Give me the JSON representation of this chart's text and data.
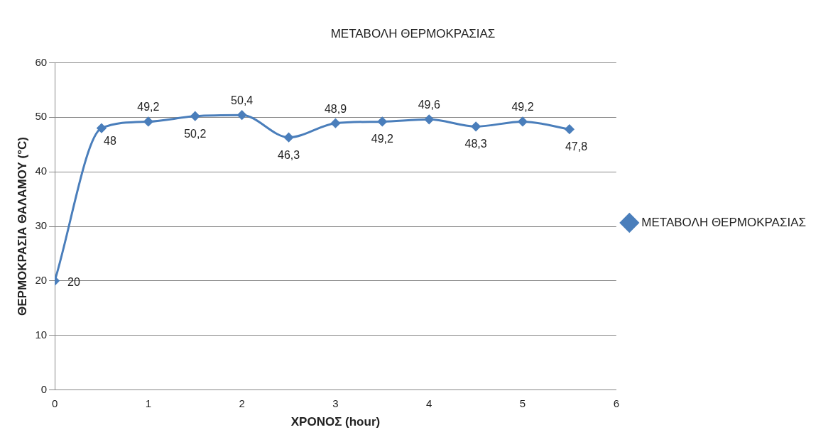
{
  "chart_data": {
    "type": "line",
    "title": "ΜΕΤΑΒΟΛΗ ΘΕΡΜΟΚΡΑΣΙΑΣ",
    "xlabel": "ΧΡΟΝΟΣ (hour)",
    "ylabel": "ΘΕΡΜΟΚΡΑΣΙΑ ΘΑΛΑΜΟΥ (°C)",
    "x": [
      0,
      0.5,
      1,
      1.5,
      2,
      2.5,
      3,
      3.5,
      4,
      4.5,
      5,
      5.5
    ],
    "series": [
      {
        "name": "ΜΕΤΑΒΟΛΗ ΘΕΡΜΟΚΡΑΣΙΑΣ",
        "color": "#4a7ebb",
        "values": [
          20,
          48,
          49.2,
          50.2,
          50.4,
          46.3,
          48.9,
          49.2,
          49.6,
          48.3,
          49.2,
          47.8
        ],
        "value_labels": [
          "20",
          "48",
          "49,2",
          "50,2",
          "50,4",
          "46,3",
          "48,9",
          "49,2",
          "49,6",
          "48,3",
          "49,2",
          "47,8"
        ]
      }
    ],
    "xlim": [
      0,
      6
    ],
    "xticks": [
      0,
      1,
      2,
      3,
      4,
      5,
      6
    ],
    "ylim": [
      0,
      60
    ],
    "yticks": [
      0,
      10,
      20,
      30,
      40,
      50,
      60
    ],
    "grid": "y",
    "legend": "right",
    "marker": "diamond",
    "line_style": "solid"
  }
}
